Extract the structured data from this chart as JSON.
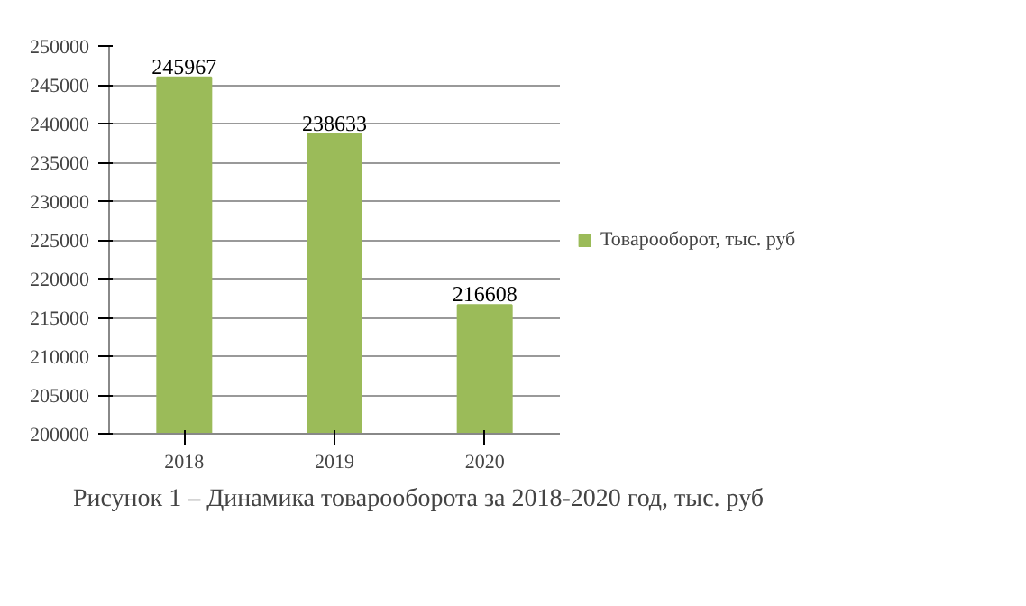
{
  "chart_data": {
    "type": "bar",
    "categories": [
      "2018",
      "2019",
      "2020"
    ],
    "series": [
      {
        "name": "Товарооборот, тыс. руб",
        "color": "#9bbb59",
        "values": [
          245967,
          238633,
          216608
        ]
      }
    ],
    "ylim": [
      200000,
      250000
    ],
    "yticks": [
      200000,
      205000,
      210000,
      215000,
      220000,
      225000,
      230000,
      235000,
      240000,
      245000,
      250000
    ],
    "grid": "y",
    "legend": "right",
    "data_labels": true,
    "annotations": [
      "Рисунок 1 – Динамика товарооборота за 2018-2020 год, тыс. руб"
    ]
  }
}
